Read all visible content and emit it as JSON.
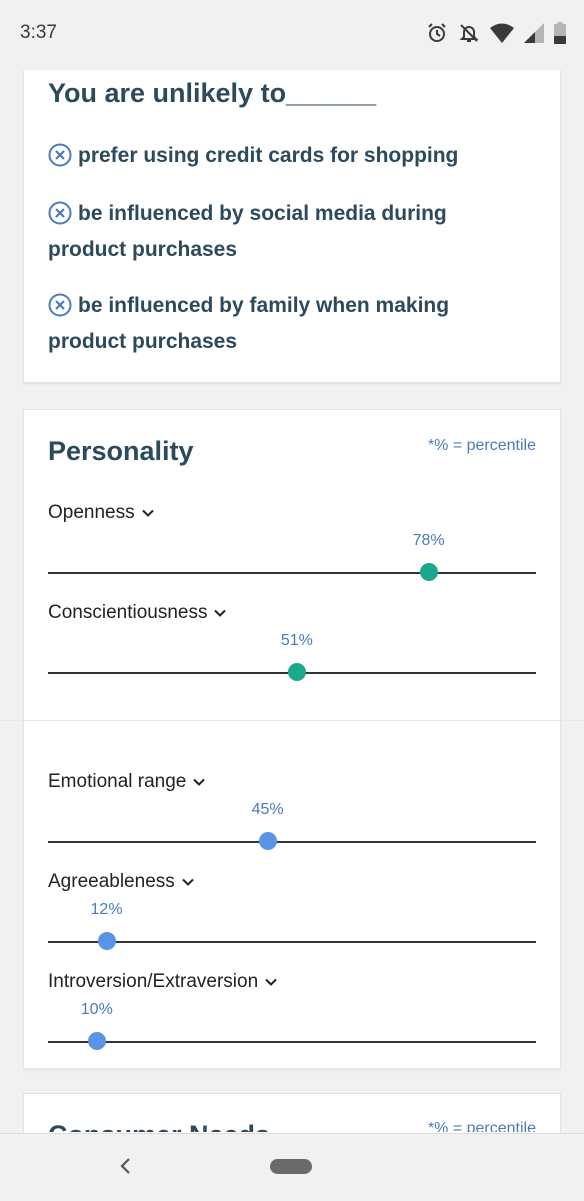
{
  "status_bar": {
    "time": "3:37",
    "icons": [
      "alarm-icon",
      "notifications-off-icon",
      "wifi-icon",
      "signal-icon",
      "battery-icon"
    ]
  },
  "unlikely": {
    "title": "You are unlikely to______",
    "items": [
      {
        "icon": "x-circle-icon",
        "text": "prefer using credit cards for shopping"
      },
      {
        "icon": "x-circle-icon",
        "text": "be influenced by social media during product purchases"
      },
      {
        "icon": "x-circle-icon",
        "text": "be influenced by family when making product purchases"
      }
    ]
  },
  "personality": {
    "title": "Personality",
    "percentile_note": "*% = percentile",
    "traits": [
      {
        "label": "Openness",
        "percent_label": "78%",
        "value": 78,
        "color": "#1aa88e"
      },
      {
        "label": "Conscientiousness",
        "percent_label": "51%",
        "value": 51,
        "color": "#1aa88e"
      },
      {
        "label": "Emotional range",
        "percent_label": "45%",
        "value": 45,
        "color": "#5b94e4"
      },
      {
        "label": "Agreeableness",
        "percent_label": "12%",
        "value": 12,
        "color": "#5b94e4"
      },
      {
        "label": "Introversion/Extraversion",
        "percent_label": "10%",
        "value": 10,
        "color": "#5b94e4"
      }
    ]
  },
  "next_card": {
    "title": "Consumer Needs",
    "percentile_note": "*% = percentile"
  },
  "colors": {
    "heading": "#2c4a5c",
    "accent_blue": "#4a7bbf",
    "thumb_teal": "#1aa88e",
    "thumb_blue": "#5b94e4"
  }
}
